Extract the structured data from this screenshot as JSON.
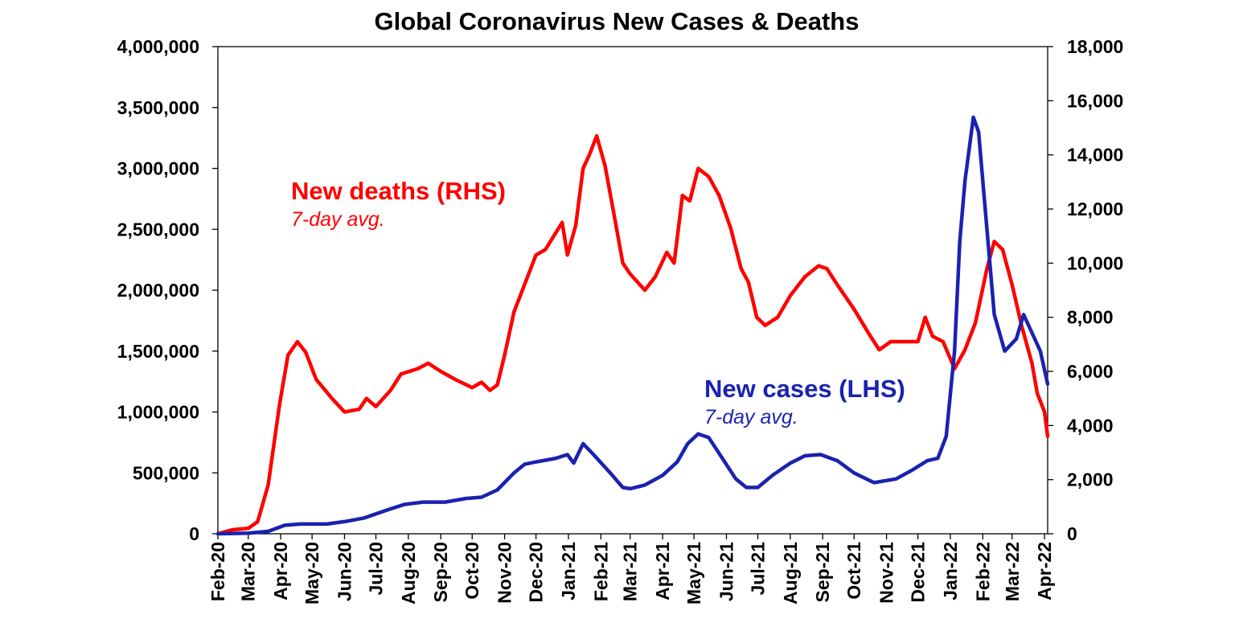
{
  "chart_data": {
    "type": "line",
    "title": "Global Coronavirus New Cases & Deaths",
    "x_tick_labels": [
      "Feb-20",
      "Mar-20",
      "Apr-20",
      "May-20",
      "Jun-20",
      "Jul-20",
      "Aug-20",
      "Sep-20",
      "Oct-20",
      "Nov-20",
      "Dec-20",
      "Jan-21",
      "Feb-21",
      "Mar-21",
      "Apr-21",
      "May-21",
      "Jun-21",
      "Jul-21",
      "Aug-21",
      "Sep-21",
      "Oct-21",
      "Nov-21",
      "Dec-21",
      "Jan-22",
      "Feb-22",
      "Mar-22",
      "Apr-22"
    ],
    "x_range": [
      "2020-02-01",
      "2022-04-04"
    ],
    "y_left": {
      "ylim": [
        0,
        4000000
      ],
      "ticks": [
        0,
        500000,
        1000000,
        1500000,
        2000000,
        2500000,
        3000000,
        3500000,
        4000000
      ],
      "tick_labels": [
        "0",
        "500,000",
        "1,000,000",
        "1,500,000",
        "2,000,000",
        "2,500,000",
        "3,000,000",
        "3,500,000",
        "4,000,000"
      ]
    },
    "y_right": {
      "ylim": [
        0,
        18000
      ],
      "ticks": [
        0,
        2000,
        4000,
        6000,
        8000,
        10000,
        12000,
        14000,
        16000,
        18000
      ],
      "tick_labels": [
        "0",
        "2,000",
        "4,000",
        "6,000",
        "8,000",
        "10,000",
        "12,000",
        "14,000",
        "16,000",
        "18,000"
      ]
    },
    "grid": false,
    "series": [
      {
        "name": "New deaths (RHS)",
        "sublabel": "7-day avg.",
        "axis": "right",
        "color": "#ff0000",
        "points": [
          [
            "2020-02-01",
            0
          ],
          [
            "2020-02-15",
            150
          ],
          [
            "2020-03-01",
            200
          ],
          [
            "2020-03-10",
            450
          ],
          [
            "2020-03-20",
            1800
          ],
          [
            "2020-03-31",
            4800
          ],
          [
            "2020-04-08",
            6600
          ],
          [
            "2020-04-17",
            7100
          ],
          [
            "2020-04-25",
            6700
          ],
          [
            "2020-05-05",
            5700
          ],
          [
            "2020-05-20",
            5000
          ],
          [
            "2020-06-01",
            4500
          ],
          [
            "2020-06-15",
            4600
          ],
          [
            "2020-06-22",
            5000
          ],
          [
            "2020-07-01",
            4700
          ],
          [
            "2020-07-15",
            5300
          ],
          [
            "2020-07-25",
            5900
          ],
          [
            "2020-08-10",
            6100
          ],
          [
            "2020-08-20",
            6300
          ],
          [
            "2020-09-01",
            6000
          ],
          [
            "2020-09-15",
            5700
          ],
          [
            "2020-10-01",
            5400
          ],
          [
            "2020-10-10",
            5600
          ],
          [
            "2020-10-18",
            5300
          ],
          [
            "2020-10-25",
            5500
          ],
          [
            "2020-11-01",
            6600
          ],
          [
            "2020-11-10",
            8200
          ],
          [
            "2020-11-20",
            9200
          ],
          [
            "2020-12-01",
            10300
          ],
          [
            "2020-12-10",
            10500
          ],
          [
            "2020-12-18",
            11000
          ],
          [
            "2020-12-26",
            11500
          ],
          [
            "2020-12-31",
            10300
          ],
          [
            "2021-01-08",
            11400
          ],
          [
            "2021-01-15",
            13500
          ],
          [
            "2021-01-21",
            14000
          ],
          [
            "2021-01-28",
            14700
          ],
          [
            "2021-02-05",
            13600
          ],
          [
            "2021-02-15",
            11500
          ],
          [
            "2021-02-22",
            10000
          ],
          [
            "2021-03-01",
            9600
          ],
          [
            "2021-03-15",
            9000
          ],
          [
            "2021-03-25",
            9500
          ],
          [
            "2021-04-05",
            10400
          ],
          [
            "2021-04-12",
            10000
          ],
          [
            "2021-04-20",
            12500
          ],
          [
            "2021-04-27",
            12300
          ],
          [
            "2021-05-05",
            13500
          ],
          [
            "2021-05-15",
            13200
          ],
          [
            "2021-05-25",
            12500
          ],
          [
            "2021-06-05",
            11300
          ],
          [
            "2021-06-15",
            9800
          ],
          [
            "2021-06-22",
            9300
          ],
          [
            "2021-06-30",
            8000
          ],
          [
            "2021-07-08",
            7700
          ],
          [
            "2021-07-20",
            8000
          ],
          [
            "2021-08-01",
            8800
          ],
          [
            "2021-08-15",
            9500
          ],
          [
            "2021-08-28",
            9900
          ],
          [
            "2021-09-05",
            9800
          ],
          [
            "2021-09-15",
            9200
          ],
          [
            "2021-10-01",
            8300
          ],
          [
            "2021-10-15",
            7400
          ],
          [
            "2021-10-25",
            6800
          ],
          [
            "2021-11-05",
            7100
          ],
          [
            "2021-11-20",
            7100
          ],
          [
            "2021-12-01",
            7100
          ],
          [
            "2021-12-08",
            8000
          ],
          [
            "2021-12-15",
            7300
          ],
          [
            "2021-12-25",
            7100
          ],
          [
            "2022-01-05",
            6100
          ],
          [
            "2022-01-15",
            6800
          ],
          [
            "2022-01-25",
            7800
          ],
          [
            "2022-02-05",
            9800
          ],
          [
            "2022-02-12",
            10800
          ],
          [
            "2022-02-20",
            10500
          ],
          [
            "2022-03-01",
            9200
          ],
          [
            "2022-03-10",
            7700
          ],
          [
            "2022-03-20",
            6300
          ],
          [
            "2022-03-25",
            5200
          ],
          [
            "2022-04-01",
            4500
          ],
          [
            "2022-04-04",
            3600
          ]
        ]
      },
      {
        "name": "New cases (LHS)",
        "sublabel": "7-day avg.",
        "axis": "left",
        "color": "#1a22b0",
        "points": [
          [
            "2020-02-01",
            0
          ],
          [
            "2020-03-01",
            5000
          ],
          [
            "2020-03-20",
            20000
          ],
          [
            "2020-04-05",
            70000
          ],
          [
            "2020-04-20",
            80000
          ],
          [
            "2020-05-15",
            80000
          ],
          [
            "2020-06-01",
            100000
          ],
          [
            "2020-06-20",
            130000
          ],
          [
            "2020-07-10",
            190000
          ],
          [
            "2020-07-28",
            240000
          ],
          [
            "2020-08-15",
            260000
          ],
          [
            "2020-09-05",
            260000
          ],
          [
            "2020-09-25",
            290000
          ],
          [
            "2020-10-10",
            300000
          ],
          [
            "2020-10-25",
            360000
          ],
          [
            "2020-11-10",
            500000
          ],
          [
            "2020-11-20",
            570000
          ],
          [
            "2020-12-01",
            590000
          ],
          [
            "2020-12-20",
            620000
          ],
          [
            "2020-12-31",
            650000
          ],
          [
            "2021-01-06",
            580000
          ],
          [
            "2021-01-15",
            740000
          ],
          [
            "2021-01-25",
            650000
          ],
          [
            "2021-02-10",
            500000
          ],
          [
            "2021-02-22",
            380000
          ],
          [
            "2021-03-01",
            370000
          ],
          [
            "2021-03-15",
            400000
          ],
          [
            "2021-04-01",
            480000
          ],
          [
            "2021-04-15",
            590000
          ],
          [
            "2021-04-25",
            740000
          ],
          [
            "2021-05-05",
            820000
          ],
          [
            "2021-05-15",
            790000
          ],
          [
            "2021-05-25",
            660000
          ],
          [
            "2021-06-10",
            450000
          ],
          [
            "2021-06-20",
            380000
          ],
          [
            "2021-07-01",
            380000
          ],
          [
            "2021-07-15",
            480000
          ],
          [
            "2021-08-01",
            580000
          ],
          [
            "2021-08-15",
            640000
          ],
          [
            "2021-08-30",
            650000
          ],
          [
            "2021-09-15",
            600000
          ],
          [
            "2021-10-01",
            500000
          ],
          [
            "2021-10-20",
            420000
          ],
          [
            "2021-11-10",
            450000
          ],
          [
            "2021-11-25",
            520000
          ],
          [
            "2021-12-10",
            600000
          ],
          [
            "2021-12-20",
            620000
          ],
          [
            "2021-12-28",
            800000
          ],
          [
            "2022-01-05",
            1500000
          ],
          [
            "2022-01-10",
            2400000
          ],
          [
            "2022-01-15",
            2900000
          ],
          [
            "2022-01-23",
            3420000
          ],
          [
            "2022-01-28",
            3300000
          ],
          [
            "2022-02-05",
            2500000
          ],
          [
            "2022-02-12",
            1800000
          ],
          [
            "2022-02-22",
            1500000
          ],
          [
            "2022-03-05",
            1600000
          ],
          [
            "2022-03-12",
            1800000
          ],
          [
            "2022-03-20",
            1650000
          ],
          [
            "2022-03-28",
            1500000
          ],
          [
            "2022-04-04",
            1230000
          ]
        ]
      }
    ]
  }
}
